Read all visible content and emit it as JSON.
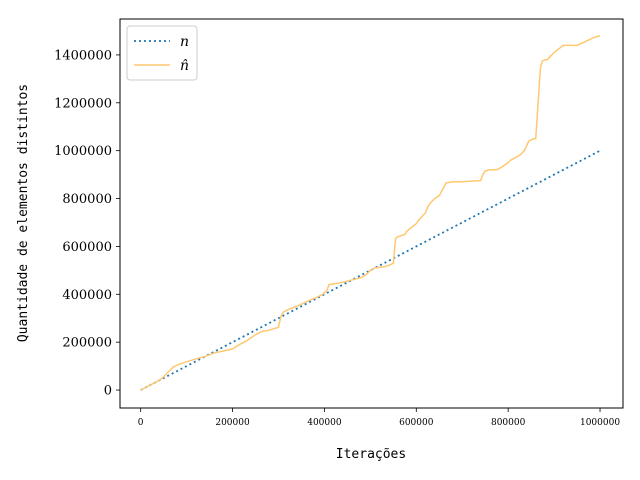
{
  "chart_data": {
    "type": "line",
    "xlabel": "Iterações",
    "ylabel": "Quantidade de elementos distintos",
    "xlim": [
      -45000,
      1050000
    ],
    "ylim": [
      -75000,
      1550000
    ],
    "x_ticks": [
      0,
      200000,
      400000,
      600000,
      800000,
      1000000
    ],
    "x_tick_labels": [
      "0",
      "200000",
      "400000",
      "600000",
      "800000",
      "1000000"
    ],
    "y_ticks": [
      0,
      200000,
      400000,
      600000,
      800000,
      1000000,
      1200000,
      1400000
    ],
    "y_tick_labels": [
      "0",
      "200000",
      "400000",
      "600000",
      "800000",
      "1000000",
      "1200000",
      "1400000"
    ],
    "grid": false,
    "legend_position": "top-left",
    "series": [
      {
        "name": "n",
        "color": "#1f77b4",
        "style": "dotted",
        "x": [
          0,
          1000000
        ],
        "y": [
          0,
          1000000
        ]
      },
      {
        "name": "n̂",
        "color": "#ffc870",
        "style": "solid",
        "x": [
          0,
          20000,
          40000,
          50000,
          60000,
          70000,
          80000,
          100000,
          120000,
          140000,
          160000,
          180000,
          200000,
          215000,
          230000,
          240000,
          250000,
          265000,
          280000,
          300000,
          305000,
          310000,
          320000,
          340000,
          360000,
          380000,
          395000,
          405000,
          410000,
          440000,
          460000,
          480000,
          490000,
          500000,
          510000,
          530000,
          540000,
          550000,
          555000,
          560000,
          575000,
          580000,
          590000,
          600000,
          605000,
          610000,
          620000,
          625000,
          630000,
          635000,
          640000,
          650000,
          655000,
          665000,
          680000,
          700000,
          740000,
          745000,
          750000,
          760000,
          775000,
          785000,
          800000,
          805000,
          815000,
          825000,
          835000,
          845000,
          855000,
          860000,
          870000,
          872000,
          875000,
          880000,
          885000,
          900000,
          920000,
          930000,
          950000,
          990000,
          1000000
        ],
        "y": [
          0,
          20000,
          40000,
          55000,
          75000,
          95000,
          105000,
          118000,
          130000,
          140000,
          155000,
          163000,
          172000,
          190000,
          205000,
          218000,
          232000,
          245000,
          250000,
          262000,
          305000,
          325000,
          335000,
          350000,
          368000,
          385000,
          398000,
          415000,
          440000,
          450000,
          460000,
          470000,
          480000,
          500000,
          510000,
          515000,
          520000,
          530000,
          635000,
          640000,
          650000,
          665000,
          680000,
          695000,
          710000,
          720000,
          740000,
          765000,
          780000,
          790000,
          800000,
          812000,
          830000,
          865000,
          870000,
          870000,
          875000,
          900000,
          915000,
          920000,
          920000,
          930000,
          950000,
          960000,
          970000,
          980000,
          1000000,
          1040000,
          1050000,
          1050000,
          1340000,
          1360000,
          1375000,
          1380000,
          1380000,
          1410000,
          1440000,
          1440000,
          1440000,
          1475000,
          1480000
        ]
      }
    ]
  }
}
